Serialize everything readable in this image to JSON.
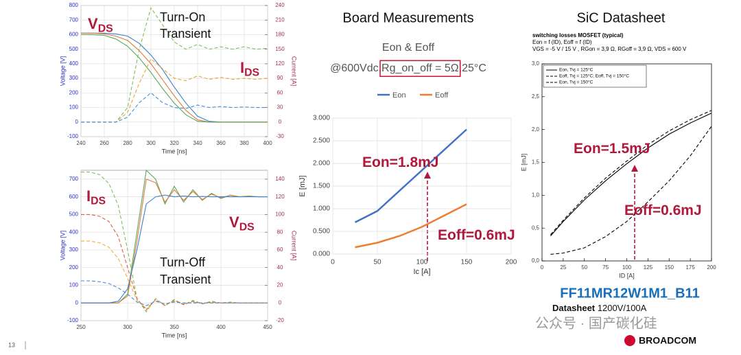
{
  "headings": [
    "Board Measurements",
    "SiC Datasheet"
  ],
  "page_number": "13",
  "watermark": "公众号 · 国产碳化硅",
  "logo": "BROADCOM",
  "part": {
    "name": "FF11MR12W1M1_B11",
    "label": "Datasheet",
    "rating": "1200V/100A"
  },
  "chart_data": [
    {
      "type": "line",
      "xlabel": "Time [ns]",
      "ylabel": "Voltage [V]",
      "y2label": "Current [A]",
      "xlim": [
        240,
        400
      ],
      "xticks": [
        240,
        260,
        280,
        300,
        320,
        340,
        360,
        380,
        400
      ],
      "ylim": [
        -100,
        800
      ],
      "yticks": [
        -100,
        0,
        100,
        200,
        300,
        400,
        500,
        600,
        700,
        800
      ],
      "y2lim": [
        -30,
        240
      ],
      "y2ticks": [
        -30,
        0,
        30,
        60,
        90,
        120,
        150,
        180,
        210,
        240
      ],
      "y_color": "#2b2bc8",
      "y2_color": "#a0304a",
      "grid": true,
      "annotations": [
        {
          "text": "V",
          "sub": "DS",
          "color": "#b0183c"
        },
        {
          "text": "Turn-On",
          "color": "#111111"
        },
        {
          "text": "Transient",
          "color": "#111111"
        },
        {
          "text": "I",
          "sub": "DS",
          "color": "#b0183c"
        }
      ],
      "x": [
        240,
        250,
        260,
        270,
        280,
        290,
        300,
        310,
        320,
        330,
        340,
        350,
        360,
        370,
        380,
        390,
        400
      ],
      "series": [
        {
          "color": "#3a7fd0",
          "dashed": false,
          "values": [
            610,
            610,
            610,
            605,
            590,
            540,
            460,
            360,
            240,
            130,
            40,
            5,
            0,
            0,
            0,
            0,
            0
          ]
        },
        {
          "color": "#e07b39",
          "dashed": false,
          "values": [
            610,
            610,
            605,
            590,
            560,
            490,
            400,
            290,
            180,
            80,
            15,
            0,
            0,
            0,
            0,
            0,
            0
          ]
        },
        {
          "color": "#5aa85a",
          "dashed": false,
          "values": [
            600,
            600,
            595,
            570,
            520,
            440,
            340,
            230,
            130,
            50,
            5,
            0,
            0,
            0,
            0,
            0,
            0
          ]
        },
        {
          "color": "#7fbf5a",
          "dashed": true,
          "axis": "y2",
          "values": [
            0,
            0,
            0,
            0,
            30,
            150,
            235,
            200,
            165,
            150,
            160,
            150,
            155,
            150,
            155,
            150,
            152
          ]
        },
        {
          "color": "#f0a030",
          "dashed": true,
          "axis": "y2",
          "values": [
            0,
            0,
            0,
            0,
            20,
            80,
            130,
            110,
            90,
            85,
            95,
            88,
            92,
            88,
            90,
            88,
            90
          ]
        },
        {
          "color": "#3a8fe0",
          "dashed": true,
          "axis": "y2",
          "values": [
            0,
            0,
            0,
            0,
            10,
            40,
            60,
            40,
            30,
            28,
            35,
            30,
            32,
            30,
            31,
            30,
            30
          ]
        }
      ]
    },
    {
      "type": "line",
      "xlabel": "Time [ns]",
      "ylabel": "Voltage [V]",
      "y2label": "Current [A]",
      "xlim": [
        250,
        450
      ],
      "xticks": [
        250,
        300,
        350,
        400,
        450
      ],
      "ylim": [
        -100,
        750
      ],
      "yticks": [
        -100,
        0,
        100,
        200,
        300,
        400,
        500,
        600,
        700
      ],
      "y2lim": [
        -20,
        150
      ],
      "y2ticks": [
        -20,
        0,
        20,
        40,
        60,
        80,
        100,
        120,
        140
      ],
      "y_color": "#2b2bc8",
      "y2_color": "#a0304a",
      "grid": true,
      "annotations": [
        {
          "text": "I",
          "sub": "DS",
          "color": "#b0183c"
        },
        {
          "text": "V",
          "sub": "DS",
          "color": "#b0183c"
        },
        {
          "text": "Turn-Off",
          "color": "#111111"
        },
        {
          "text": "Transient",
          "color": "#111111"
        }
      ],
      "x": [
        250,
        260,
        270,
        280,
        290,
        300,
        310,
        320,
        330,
        340,
        350,
        360,
        370,
        380,
        390,
        400,
        410,
        420,
        430,
        440,
        450
      ],
      "series": [
        {
          "color": "#5aa85a",
          "dashed": false,
          "values": [
            0,
            0,
            0,
            0,
            0,
            50,
            400,
            750,
            700,
            560,
            660,
            570,
            640,
            580,
            620,
            590,
            610,
            600,
            605,
            600,
            600
          ]
        },
        {
          "color": "#e07b39",
          "dashed": false,
          "values": [
            0,
            0,
            0,
            0,
            0,
            40,
            350,
            700,
            680,
            570,
            640,
            580,
            630,
            585,
            615,
            595,
            608,
            600,
            603,
            600,
            600
          ]
        },
        {
          "color": "#3a7fd0",
          "dashed": false,
          "values": [
            0,
            0,
            0,
            0,
            10,
            80,
            300,
            560,
            600,
            610,
            600,
            605,
            600,
            602,
            600,
            601,
            600,
            600,
            600,
            600,
            600
          ]
        },
        {
          "color": "#7fbf5a",
          "dashed": true,
          "axis": "y2",
          "values": [
            148,
            148,
            145,
            135,
            110,
            60,
            5,
            -10,
            5,
            -3,
            4,
            -2,
            3,
            -1,
            2,
            0,
            1,
            0,
            0,
            0,
            0
          ]
        },
        {
          "color": "#e05a4a",
          "dashed": true,
          "axis": "y2",
          "values": [
            100,
            100,
            98,
            92,
            75,
            40,
            5,
            -8,
            4,
            -3,
            3,
            -2,
            2,
            -1,
            1,
            0,
            0,
            0,
            0,
            0,
            0
          ]
        },
        {
          "color": "#f0b030",
          "dashed": true,
          "axis": "y2",
          "values": [
            70,
            70,
            68,
            63,
            50,
            28,
            3,
            -6,
            3,
            -2,
            2,
            -1,
            1,
            0,
            0,
            0,
            0,
            0,
            0,
            0,
            0
          ]
        },
        {
          "color": "#3a8fe0",
          "dashed": true,
          "axis": "y2",
          "values": [
            25,
            25,
            24,
            22,
            17,
            10,
            1,
            -3,
            2,
            -1,
            1,
            0,
            0,
            0,
            0,
            0,
            0,
            0,
            0,
            0,
            0
          ]
        }
      ]
    },
    {
      "type": "line",
      "title": "Eon & Eoff",
      "subtitle": [
        "@600Vdc,",
        "Rg_on_off = 5Ω",
        ",25°C"
      ],
      "xlabel": "Ic [A]",
      "ylabel": "E [mJ]",
      "legend": "top",
      "grid": true,
      "xlim": [
        0,
        200
      ],
      "xticks": [
        0,
        50,
        100,
        150,
        200
      ],
      "ylim": [
        0,
        3
      ],
      "yticks": [
        {
          "value": 0,
          "label": "0.000"
        },
        {
          "value": 0.5,
          "label": "0.500"
        },
        {
          "value": 1,
          "label": "1.000"
        },
        {
          "value": 1.5,
          "label": "1.500"
        },
        {
          "value": 2,
          "label": "2.000"
        },
        {
          "value": 2.5,
          "label": "2.500"
        },
        {
          "value": 3,
          "label": "3.000"
        }
      ],
      "annotations": [
        {
          "text": "Eon=1.8mJ",
          "color": "#b0183c"
        },
        {
          "text": "Eoff=0.6mJ",
          "color": "#b0183c"
        }
      ],
      "x": [
        25,
        50,
        75,
        100,
        125,
        150
      ],
      "series": [
        {
          "name": "Eon",
          "color": "#4472c4",
          "dashed": false,
          "values": [
            0.7,
            0.95,
            1.4,
            1.85,
            2.3,
            2.75
          ]
        },
        {
          "name": "Eoff",
          "color": "#ed7d31",
          "dashed": false,
          "values": [
            0.15,
            0.25,
            0.4,
            0.6,
            0.85,
            1.1
          ]
        }
      ]
    },
    {
      "type": "line",
      "title": "switching losses MOSFET (typical)",
      "subtitle": [
        "Eon = f (ID), Eoff = f (ID)",
        "VGS = -5 V / 15 V , RGon = 3,9  Ω, RGoff = 3,9  Ω, VDS = 600 V"
      ],
      "xlabel": "ID [A]",
      "ylabel": "E [mJ]",
      "legend": "upper left",
      "grid": false,
      "xlim": [
        0,
        200
      ],
      "xticks": [
        0,
        25,
        50,
        75,
        100,
        125,
        150,
        175,
        200
      ],
      "ylim": [
        0,
        3
      ],
      "yticks": [
        {
          "value": 0,
          "label": "0,0"
        },
        {
          "value": 0.5,
          "label": "0,5"
        },
        {
          "value": 1,
          "label": "1,0"
        },
        {
          "value": 1.5,
          "label": "1,5"
        },
        {
          "value": 2,
          "label": "2,0"
        },
        {
          "value": 2.5,
          "label": "2,5"
        },
        {
          "value": 3,
          "label": "3,0"
        }
      ],
      "annotations": [
        {
          "text": "Eon=1.5mJ",
          "color": "#b0183c"
        },
        {
          "text": "Eoff=0.6mJ",
          "color": "#b0183c"
        }
      ],
      "x": [
        10,
        25,
        50,
        75,
        100,
        125,
        150,
        175,
        200
      ],
      "series": [
        {
          "name": "Eon, Tvj = 125°C",
          "color": "#000000",
          "dashed": false,
          "values": [
            0.38,
            0.6,
            0.93,
            1.22,
            1.48,
            1.72,
            1.93,
            2.1,
            2.25
          ]
        },
        {
          "name": "Eoff, Tvj = 125°C; Eoff, Tvj = 150°C",
          "color": "#000000",
          "dashed": true,
          "values": [
            0.1,
            0.12,
            0.2,
            0.37,
            0.6,
            0.9,
            1.22,
            1.6,
            2.05
          ]
        },
        {
          "name": "Eon, Tvj = 150°C",
          "color": "#000000",
          "dashed": true,
          "values": [
            0.4,
            0.62,
            0.96,
            1.26,
            1.52,
            1.77,
            1.98,
            2.15,
            2.29
          ]
        }
      ]
    }
  ]
}
